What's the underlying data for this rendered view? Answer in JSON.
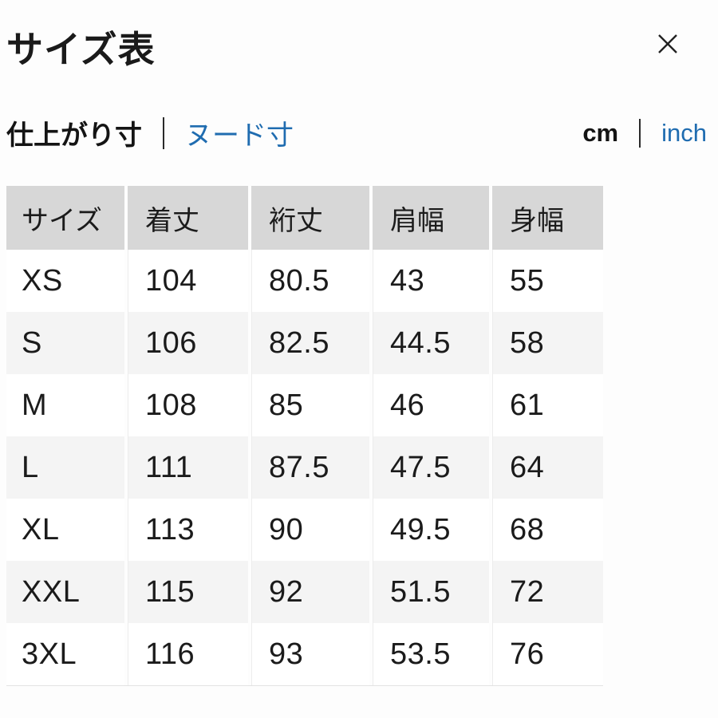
{
  "modal": {
    "title": "サイズ表",
    "close_icon": "close-x"
  },
  "measure_tabs": {
    "finished_label": "仕上がり寸",
    "nude_label": "ヌード寸",
    "active": "仕上がり寸"
  },
  "unit_tabs": {
    "cm_label": "cm",
    "inch_label": "inch",
    "active": "cm"
  },
  "colors": {
    "link_blue": "#1f6cb0",
    "header_gray": "#d7d7d7",
    "stripe_gray": "#f4f4f4",
    "text": "#1a1a1a",
    "background": "#fdfdfd"
  },
  "table": {
    "columns": [
      "サイズ",
      "着丈",
      "裄丈",
      "肩幅",
      "身幅"
    ],
    "rows": [
      {
        "size": "XS",
        "values": [
          "104",
          "80.5",
          "43",
          "55"
        ]
      },
      {
        "size": "S",
        "values": [
          "106",
          "82.5",
          "44.5",
          "58"
        ]
      },
      {
        "size": "M",
        "values": [
          "108",
          "85",
          "46",
          "61"
        ]
      },
      {
        "size": "L",
        "values": [
          "111",
          "87.5",
          "47.5",
          "64"
        ]
      },
      {
        "size": "XL",
        "values": [
          "113",
          "90",
          "49.5",
          "68"
        ]
      },
      {
        "size": "XXL",
        "values": [
          "115",
          "92",
          "51.5",
          "72"
        ]
      },
      {
        "size": "3XL",
        "values": [
          "116",
          "93",
          "53.5",
          "76"
        ]
      }
    ]
  }
}
